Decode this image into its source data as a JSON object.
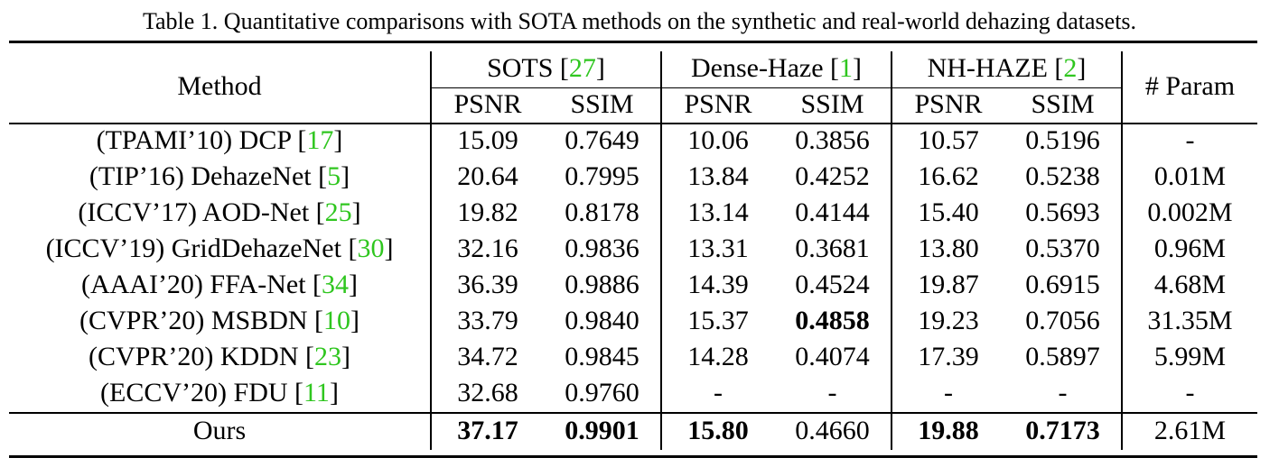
{
  "caption": "Table 1. Quantitative comparisons with SOTA methods on the synthetic and real-world dehazing datasets.",
  "header": {
    "method": "Method",
    "param": "# Param",
    "datasets": [
      {
        "name": "SOTS [",
        "ref": "27",
        "close": "]"
      },
      {
        "name": "Dense-Haze [",
        "ref": "1",
        "close": "]"
      },
      {
        "name": "NH-HAZE [",
        "ref": "2",
        "close": "]"
      }
    ],
    "metrics": [
      "PSNR",
      "SSIM",
      "PSNR",
      "SSIM",
      "PSNR",
      "SSIM"
    ]
  },
  "rows": [
    {
      "method": "(TPAMI’10) DCP [",
      "ref": "17",
      "close": "]",
      "values": [
        "15.09",
        "0.7649",
        "10.06",
        "0.3856",
        "10.57",
        "0.5196"
      ],
      "param": "-"
    },
    {
      "method": "(TIP’16) DehazeNet [",
      "ref": "5",
      "close": "]",
      "values": [
        "20.64",
        "0.7995",
        "13.84",
        "0.4252",
        "16.62",
        "0.5238"
      ],
      "param": "0.01M"
    },
    {
      "method": "(ICCV’17) AOD-Net [",
      "ref": "25",
      "close": "]",
      "values": [
        "19.82",
        "0.8178",
        "13.14",
        "0.4144",
        "15.40",
        "0.5693"
      ],
      "param": "0.002M"
    },
    {
      "method": "(ICCV’19) GridDehazeNet [",
      "ref": "30",
      "close": "]",
      "values": [
        "32.16",
        "0.9836",
        "13.31",
        "0.3681",
        "13.80",
        "0.5370"
      ],
      "param": "0.96M"
    },
    {
      "method": "(AAAI’20) FFA-Net [",
      "ref": "34",
      "close": "]",
      "values": [
        "36.39",
        "0.9886",
        "14.39",
        "0.4524",
        "19.87",
        "0.6915"
      ],
      "param": "4.68M"
    },
    {
      "method": "(CVPR’20) MSBDN [",
      "ref": "10",
      "close": "]",
      "values": [
        "33.79",
        "0.9840",
        "15.37",
        "0.4858",
        "19.23",
        "0.7056"
      ],
      "param": "31.35M"
    },
    {
      "method": "(CVPR’20) KDDN [",
      "ref": "23",
      "close": "]",
      "values": [
        "34.72",
        "0.9845",
        "14.28",
        "0.4074",
        "17.39",
        "0.5897"
      ],
      "param": "5.99M"
    },
    {
      "method": "(ECCV’20) FDU [",
      "ref": "11",
      "close": "]",
      "values": [
        "32.68",
        "0.9760",
        "-",
        "-",
        "-",
        "-"
      ],
      "param": "-"
    }
  ],
  "ours": {
    "method": "Ours",
    "values": [
      "37.17",
      "0.9901",
      "15.80",
      "0.4660",
      "19.88",
      "0.7173"
    ],
    "param": "2.61M"
  }
}
